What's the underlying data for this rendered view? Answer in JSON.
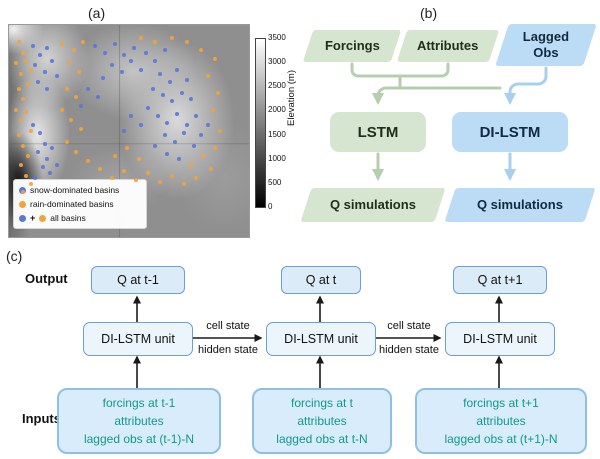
{
  "colors": {
    "snow_dot": "#5b76d8",
    "rain_dot": "#f2a33a",
    "green_fill": "#d6e5d0",
    "blue_fill": "#bcdcf5",
    "green_arrow": "#b5cfae",
    "blue_arrow": "#a9cfec",
    "teal_text": "#0f998c"
  },
  "panel_a": {
    "label": "(a)",
    "legend": {
      "plus": "+",
      "items": [
        {
          "label": "snow-dominated basins"
        },
        {
          "label": "rain-dominated basins"
        },
        {
          "label": "all basins"
        }
      ]
    },
    "colorbar": {
      "title": "Elevation (m)",
      "ticks": [
        "3500",
        "3000",
        "2500",
        "2000",
        "1500",
        "1000",
        "500",
        "0"
      ]
    },
    "map_dots": {
      "snow": [
        [
          10,
          10
        ],
        [
          13,
          14
        ],
        [
          16,
          11
        ],
        [
          11,
          19
        ],
        [
          15,
          22
        ],
        [
          18,
          17
        ],
        [
          12,
          27
        ],
        [
          16,
          30
        ],
        [
          20,
          24
        ],
        [
          36,
          10
        ],
        [
          40,
          13
        ],
        [
          44,
          9
        ],
        [
          48,
          14
        ],
        [
          52,
          11
        ],
        [
          43,
          19
        ],
        [
          47,
          22
        ],
        [
          51,
          17
        ],
        [
          55,
          21
        ],
        [
          39,
          25
        ],
        [
          57,
          13
        ],
        [
          61,
          17
        ],
        [
          65,
          12
        ],
        [
          63,
          23
        ],
        [
          67,
          27
        ],
        [
          70,
          21
        ],
        [
          74,
          26
        ],
        [
          60,
          30
        ],
        [
          64,
          33
        ],
        [
          68,
          36
        ],
        [
          72,
          32
        ],
        [
          76,
          35
        ],
        [
          58,
          39
        ],
        [
          62,
          43
        ],
        [
          66,
          46
        ],
        [
          70,
          42
        ],
        [
          74,
          47
        ],
        [
          78,
          43
        ],
        [
          65,
          52
        ],
        [
          69,
          55
        ],
        [
          73,
          51
        ],
        [
          61,
          57
        ],
        [
          66,
          61
        ],
        [
          71,
          63
        ],
        [
          10,
          47
        ],
        [
          13,
          51
        ],
        [
          15,
          56
        ],
        [
          12,
          60
        ],
        [
          16,
          63
        ],
        [
          18,
          58
        ],
        [
          14,
          67
        ],
        [
          17,
          70
        ],
        [
          20,
          66
        ],
        [
          11,
          72
        ],
        [
          33,
          30
        ],
        [
          37,
          34
        ],
        [
          30,
          38
        ],
        [
          55,
          47
        ],
        [
          51,
          43
        ],
        [
          48,
          50
        ],
        [
          77,
          57
        ],
        [
          80,
          52
        ],
        [
          83,
          47
        ]
      ],
      "rain": [
        [
          4,
          8
        ],
        [
          6,
          13
        ],
        [
          3,
          18
        ],
        [
          5,
          23
        ],
        [
          7,
          17
        ],
        [
          4,
          30
        ],
        [
          6,
          35
        ],
        [
          3,
          40
        ],
        [
          5,
          45
        ],
        [
          7,
          41
        ],
        [
          4,
          52
        ],
        [
          6,
          57
        ],
        [
          8,
          62
        ],
        [
          5,
          66
        ],
        [
          7,
          71
        ],
        [
          9,
          75
        ],
        [
          6,
          79
        ],
        [
          9,
          50
        ],
        [
          8,
          28
        ],
        [
          9,
          21
        ],
        [
          22,
          9
        ],
        [
          27,
          12
        ],
        [
          31,
          8
        ],
        [
          25,
          18
        ],
        [
          29,
          22
        ],
        [
          24,
          30
        ],
        [
          28,
          34
        ],
        [
          22,
          40
        ],
        [
          26,
          45
        ],
        [
          30,
          49
        ],
        [
          24,
          55
        ],
        [
          28,
          60
        ],
        [
          33,
          64
        ],
        [
          38,
          68
        ],
        [
          43,
          72
        ],
        [
          48,
          69
        ],
        [
          53,
          73
        ],
        [
          58,
          70
        ],
        [
          63,
          74
        ],
        [
          68,
          71
        ],
        [
          73,
          75
        ],
        [
          78,
          72
        ],
        [
          44,
          62
        ],
        [
          49,
          58
        ],
        [
          54,
          63
        ],
        [
          76,
          66
        ],
        [
          81,
          62
        ],
        [
          84,
          68
        ],
        [
          86,
          58
        ],
        [
          88,
          50
        ],
        [
          85,
          40
        ],
        [
          87,
          32
        ],
        [
          83,
          24
        ],
        [
          86,
          16
        ],
        [
          80,
          12
        ],
        [
          74,
          8
        ],
        [
          68,
          6
        ],
        [
          61,
          8
        ],
        [
          55,
          6
        ]
      ]
    }
  },
  "panel_b": {
    "label": "(b)",
    "forcings": "Forcings",
    "attributes": "Attributes",
    "lagged_obs": "Lagged Obs",
    "lstm": "LSTM",
    "di_lstm": "DI-LSTM",
    "q_sim_green": "Q simulations",
    "q_sim_blue": "Q simulations"
  },
  "panel_c": {
    "label": "(c)",
    "output_label": "Output",
    "inputs_label": "Inputs",
    "state_labels": {
      "cell": "cell state",
      "hidden": "hidden state"
    },
    "columns": [
      {
        "q": "Q at t-1",
        "unit": "DI-LSTM unit",
        "lines": [
          "forcings at t-1",
          "attributes",
          "lagged obs at (t-1)-N"
        ]
      },
      {
        "q": "Q at t",
        "unit": "DI-LSTM unit",
        "lines": [
          "forcings at t",
          "attributes",
          "lagged obs at t-N"
        ]
      },
      {
        "q": "Q at t+1",
        "unit": "DI-LSTM unit",
        "lines": [
          "forcings at t+1",
          "attributes",
          "lagged obs at (t+1)-N"
        ]
      }
    ]
  }
}
